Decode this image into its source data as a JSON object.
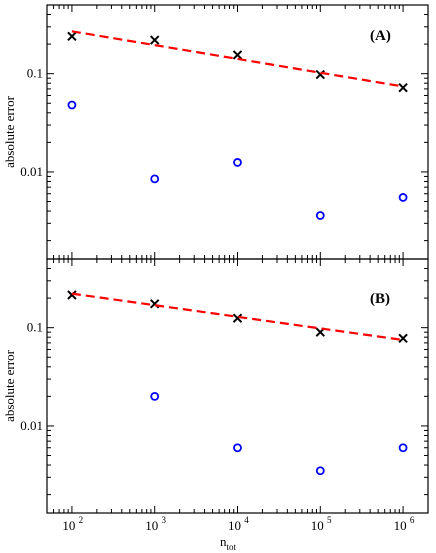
{
  "chart_data": [
    {
      "type": "scatter",
      "panel_label": "(A)",
      "xlabel": "",
      "ylabel": "absolute error",
      "xscale": "log",
      "yscale": "log",
      "xlim": [
        50,
        2000000
      ],
      "ylim": [
        0.0013,
        0.5
      ],
      "yticks": [
        {
          "value": 0.01,
          "label": "0.01"
        },
        {
          "value": 0.1,
          "label": "0.1"
        }
      ],
      "series": [
        {
          "marker": "x",
          "color": "#000000",
          "x": [
            100,
            1000,
            10000,
            100000,
            1000000
          ],
          "y": [
            0.24,
            0.22,
            0.155,
            0.098,
            0.072
          ]
        },
        {
          "marker": "o",
          "color": "#0000ff",
          "x": [
            100,
            1000,
            10000,
            100000,
            1000000
          ],
          "y": [
            0.048,
            0.0085,
            0.0125,
            0.0036,
            0.0055
          ]
        },
        {
          "marker": "dashed-line",
          "color": "#ff0000",
          "x": [
            100,
            1000000
          ],
          "y": [
            0.27,
            0.074
          ]
        }
      ]
    },
    {
      "type": "scatter",
      "panel_label": "(B)",
      "xlabel": "n_tot",
      "ylabel": "absolute error",
      "xscale": "log",
      "yscale": "log",
      "xlim": [
        50,
        2000000
      ],
      "ylim": [
        0.0013,
        0.5
      ],
      "yticks": [
        {
          "value": 0.01,
          "label": "0.01"
        },
        {
          "value": 0.1,
          "label": "0.1"
        }
      ],
      "xticks": [
        {
          "value": 100,
          "base": "10",
          "exp": "2"
        },
        {
          "value": 1000,
          "base": "10",
          "exp": "3"
        },
        {
          "value": 10000,
          "base": "10",
          "exp": "4"
        },
        {
          "value": 100000,
          "base": "10",
          "exp": "5"
        },
        {
          "value": 1000000,
          "base": "10",
          "exp": "6"
        }
      ],
      "series": [
        {
          "marker": "x",
          "color": "#000000",
          "x": [
            100,
            1000,
            10000,
            100000,
            1000000
          ],
          "y": [
            0.215,
            0.175,
            0.125,
            0.09,
            0.078
          ]
        },
        {
          "marker": "o",
          "color": "#0000ff",
          "x": [
            1000,
            10000,
            100000,
            1000000
          ],
          "y": [
            0.02,
            0.006,
            0.0035,
            0.006
          ]
        },
        {
          "marker": "dashed-line",
          "color": "#ff0000",
          "x": [
            100,
            1000000
          ],
          "y": [
            0.222,
            0.075
          ]
        }
      ]
    }
  ],
  "xlabel_main": "n",
  "xlabel_sub": "tot"
}
